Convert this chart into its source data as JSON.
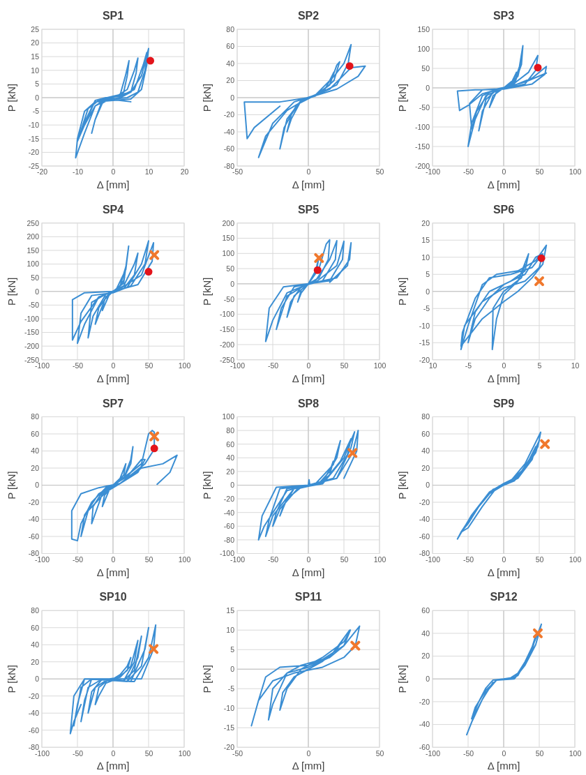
{
  "chart_data": [
    {
      "type": "line",
      "title": "SP1",
      "xlabel": "Δ [mm]",
      "ylabel": "P [kN]",
      "xlim": [
        -20,
        20
      ],
      "ylim": [
        -25,
        25
      ],
      "xticks": [
        -20,
        -10,
        0,
        10,
        20
      ],
      "yticks": [
        -25,
        -20,
        -15,
        -10,
        -5,
        0,
        5,
        10,
        15,
        20,
        25
      ],
      "grid": true,
      "series": [
        {
          "type": "line",
          "color": "#3b8ed3",
          "x": [
            0,
            2,
            3.5,
            4.5,
            4,
            3,
            1,
            -1,
            -3,
            -5,
            -6,
            -5,
            -3,
            -1,
            1,
            4,
            6,
            7,
            6.5,
            5,
            2,
            -2,
            -5,
            -8,
            -10,
            -8,
            -5,
            -2,
            2,
            6,
            8.5,
            9.5,
            9,
            7,
            4,
            0,
            -4,
            -7,
            -9,
            -10,
            -8,
            -5,
            0,
            5,
            8,
            10,
            9.5,
            8,
            5,
            0,
            -5,
            -8,
            -10,
            -10.5,
            -8,
            -5,
            -2,
            2,
            5
          ],
          "values": [
            0,
            1,
            8,
            13.5,
            8,
            2,
            0.5,
            -0.5,
            -2,
            -8,
            -13,
            -8,
            -1,
            0,
            0.5,
            3,
            10,
            14.5,
            9,
            2,
            0,
            -1,
            -3,
            -10,
            -16,
            -10,
            -1,
            0,
            0.5,
            3,
            12,
            16.5,
            10,
            2,
            0,
            -0.5,
            -1,
            -4,
            -12,
            -15,
            -9,
            -1,
            0.5,
            2,
            8,
            18,
            12,
            3,
            -0.5,
            -1,
            -1.5,
            -5,
            -15,
            -22,
            -13,
            -3,
            -0.5,
            -1,
            -1.5
          ]
        },
        {
          "type": "scatter",
          "marker": "circle",
          "color": "#e3141b",
          "x": [
            10.5
          ],
          "values": [
            13.5
          ]
        }
      ]
    },
    {
      "type": "line",
      "title": "SP2",
      "xlabel": "Δ [mm]",
      "ylabel": "P [kN]",
      "xlim": [
        -50,
        50
      ],
      "ylim": [
        -80,
        80
      ],
      "xticks": [
        -50,
        0,
        50
      ],
      "yticks": [
        -80,
        -60,
        -40,
        -20,
        0,
        20,
        40,
        60,
        80
      ],
      "grid": true,
      "series": [
        {
          "type": "line",
          "color": "#3b8ed3",
          "x": [
            0,
            10,
            15,
            18,
            15,
            5,
            -5,
            -12,
            -15,
            -12,
            -5,
            5,
            15,
            20,
            22,
            18,
            8,
            -5,
            -15,
            -20,
            -17,
            -8,
            5,
            18,
            25,
            30,
            28,
            20,
            5,
            -10,
            -25,
            -35,
            -30,
            -15,
            0,
            15,
            30,
            40,
            35,
            20,
            0,
            -20,
            -45,
            -43,
            -38,
            -20
          ],
          "values": [
            0,
            5,
            20,
            30,
            15,
            2,
            -3,
            -25,
            -40,
            -20,
            -3,
            3,
            15,
            38,
            42,
            20,
            5,
            -3,
            -25,
            -60,
            -35,
            -8,
            3,
            25,
            40,
            62,
            40,
            15,
            3,
            -5,
            -30,
            -70,
            -45,
            -15,
            0,
            10,
            35,
            37,
            25,
            10,
            0,
            -5,
            -5,
            -48,
            -35,
            -10
          ]
        },
        {
          "type": "scatter",
          "marker": "circle",
          "color": "#e3141b",
          "x": [
            29
          ],
          "values": [
            37
          ]
        }
      ]
    },
    {
      "type": "line",
      "title": "SP3",
      "xlabel": "Δ [mm]",
      "ylabel": "P [kN]",
      "xlim": [
        -100,
        100
      ],
      "ylim": [
        -200,
        150
      ],
      "xticks": [
        -100,
        -50,
        0,
        50,
        100
      ],
      "yticks": [
        -200,
        -150,
        -100,
        -50,
        0,
        50,
        100,
        150
      ],
      "grid": true,
      "series": [
        {
          "type": "line",
          "color": "#3b8ed3",
          "x": [
            0,
            10,
            18,
            12,
            0,
            -10,
            -20,
            -15,
            0,
            15,
            25,
            20,
            5,
            -10,
            -25,
            -35,
            -30,
            -15,
            0,
            20,
            27,
            25,
            15,
            0,
            -25,
            -40,
            -50,
            -45,
            -30,
            -10,
            10,
            35,
            48,
            45,
            30,
            0,
            -30,
            -48,
            -45,
            -38,
            -20,
            10,
            40,
            60,
            58,
            40,
            0,
            -40,
            -65,
            -62,
            -50,
            -30,
            0,
            30,
            60
          ],
          "values": [
            0,
            10,
            40,
            15,
            0,
            -10,
            -50,
            -20,
            0,
            15,
            70,
            30,
            2,
            -5,
            -30,
            -110,
            -60,
            -10,
            0,
            30,
            108,
            60,
            10,
            0,
            -20,
            -80,
            -150,
            -90,
            -20,
            -3,
            5,
            40,
            83,
            45,
            10,
            -2,
            -5,
            -40,
            -105,
            -60,
            -10,
            3,
            25,
            55,
            35,
            10,
            -3,
            -5,
            -8,
            -58,
            -45,
            -15,
            0,
            15,
            38
          ]
        },
        {
          "type": "scatter",
          "marker": "circle",
          "color": "#e3141b",
          "x": [
            48
          ],
          "values": [
            52
          ]
        }
      ]
    },
    {
      "type": "line",
      "title": "SP4",
      "xlabel": "Δ [mm]",
      "ylabel": "P [kN]",
      "xlim": [
        -100,
        100
      ],
      "ylim": [
        -250,
        250
      ],
      "xticks": [
        -100,
        -50,
        0,
        50,
        100
      ],
      "yticks": [
        -250,
        -200,
        -150,
        -100,
        -50,
        0,
        50,
        100,
        150,
        200,
        250
      ],
      "grid": true,
      "series": [
        {
          "type": "line",
          "color": "#3b8ed3",
          "x": [
            0,
            10,
            18,
            15,
            5,
            -5,
            -15,
            -12,
            0,
            15,
            22,
            18,
            5,
            -10,
            -25,
            -20,
            -5,
            15,
            30,
            35,
            30,
            15,
            -10,
            -30,
            -35,
            -28,
            -10,
            20,
            40,
            50,
            45,
            25,
            0,
            -30,
            -45,
            -50,
            -40,
            -20,
            10,
            40,
            57,
            55,
            35,
            0,
            -40,
            -57,
            -57,
            -45,
            -20
          ],
          "values": [
            0,
            20,
            90,
            40,
            5,
            -10,
            -70,
            -30,
            0,
            30,
            166,
            80,
            10,
            -20,
            -120,
            -60,
            -5,
            20,
            100,
            140,
            60,
            10,
            -10,
            -40,
            -170,
            -90,
            -10,
            15,
            100,
            185,
            100,
            20,
            -5,
            -15,
            -80,
            -190,
            -120,
            -20,
            10,
            60,
            178,
            110,
            25,
            0,
            -5,
            -30,
            -178,
            -110,
            -20
          ]
        },
        {
          "type": "scatter",
          "marker": "circle",
          "color": "#e3141b",
          "x": [
            50
          ],
          "values": [
            72
          ]
        },
        {
          "type": "scatter",
          "marker": "cross",
          "color": "#f0782d",
          "x": [
            58
          ],
          "values": [
            133
          ]
        }
      ]
    },
    {
      "type": "line",
      "title": "SP5",
      "xlabel": "Δ [mm]",
      "ylabel": "P [kN]",
      "xlim": [
        -100,
        100
      ],
      "ylim": [
        -250,
        200
      ],
      "xticks": [
        -100,
        -50,
        0,
        50,
        100
      ],
      "yticks": [
        -250,
        -200,
        -150,
        -100,
        -50,
        0,
        50,
        100,
        150,
        200
      ],
      "grid": true,
      "series": [
        {
          "type": "line",
          "color": "#3b8ed3",
          "x": [
            0,
            10,
            15,
            12,
            0,
            -10,
            -15,
            -10,
            0,
            15,
            25,
            30,
            28,
            15,
            0,
            -20,
            -30,
            -25,
            -10,
            10,
            30,
            40,
            38,
            20,
            -5,
            -30,
            -45,
            -38,
            -20,
            10,
            40,
            50,
            48,
            30,
            0,
            -35,
            -55,
            -60,
            -50,
            -30,
            0,
            40,
            58,
            60,
            55,
            30
          ],
          "values": [
            0,
            40,
            90,
            50,
            0,
            -30,
            -60,
            -20,
            0,
            50,
            130,
            145,
            80,
            20,
            0,
            -40,
            -110,
            -60,
            -10,
            10,
            80,
            142,
            80,
            10,
            -5,
            -40,
            -150,
            -80,
            -10,
            5,
            60,
            140,
            80,
            10,
            0,
            -10,
            -80,
            -190,
            -120,
            -30,
            0,
            20,
            80,
            135,
            60,
            5
          ]
        },
        {
          "type": "scatter",
          "marker": "circle",
          "color": "#e3141b",
          "x": [
            13
          ],
          "values": [
            45
          ]
        },
        {
          "type": "scatter",
          "marker": "cross",
          "color": "#f0782d",
          "x": [
            15
          ],
          "values": [
            85
          ]
        }
      ]
    },
    {
      "type": "line",
      "title": "SP6",
      "xlabel": "Δ [mm]",
      "ylabel": "P [kN]",
      "xlim": [
        -10,
        10
      ],
      "ylim": [
        -20,
        20
      ],
      "xticks": [
        {
          "value": -10,
          "label": "10"
        },
        -5,
        0,
        5,
        10
      ],
      "yticks": [
        -20,
        -15,
        -10,
        -5,
        0,
        5,
        10,
        15,
        20
      ],
      "grid": true,
      "series": [
        {
          "type": "line",
          "color": "#3b8ed3",
          "x": [
            0,
            2,
            3,
            2.5,
            0,
            -1.5,
            -1.6,
            -1,
            0,
            2,
            3.5,
            3,
            1,
            -2,
            -4,
            -5,
            -4,
            -2,
            0,
            3,
            4.5,
            5.5,
            5,
            3,
            0,
            -3,
            -5.5,
            -6,
            -5,
            -3,
            -1,
            2,
            4.5,
            6,
            5.5,
            4,
            2,
            0,
            -3,
            -6,
            -5.8,
            -4,
            -2,
            1,
            4,
            5.5
          ],
          "values": [
            0,
            3,
            8,
            4,
            0,
            -5,
            -17,
            -8,
            -1,
            3,
            11,
            6,
            3,
            0,
            -6,
            -15,
            -8,
            -2,
            2,
            5,
            10,
            11,
            7,
            3,
            1,
            -3,
            -10,
            -17,
            -10,
            2,
            5,
            6,
            9,
            13.5,
            8,
            4,
            0,
            -3,
            -8,
            -16,
            -12,
            -2,
            4,
            5,
            7,
            11
          ]
        },
        {
          "type": "scatter",
          "marker": "circle",
          "color": "#e3141b",
          "x": [
            5.3
          ],
          "values": [
            9.7
          ]
        },
        {
          "type": "scatter",
          "marker": "cross",
          "color": "#f0782d",
          "x": [
            5
          ],
          "values": [
            3
          ]
        }
      ]
    },
    {
      "type": "line",
      "title": "SP7",
      "xlabel": "Δ [mm]",
      "ylabel": "P [kN]",
      "xlim": [
        -100,
        100
      ],
      "ylim": [
        -80,
        80
      ],
      "xticks": [
        -100,
        -50,
        0,
        50,
        100
      ],
      "yticks": [
        -80,
        -60,
        -40,
        -20,
        0,
        20,
        40,
        60,
        80
      ],
      "grid": true,
      "series": [
        {
          "type": "line",
          "color": "#3b8ed3",
          "x": [
            0,
            10,
            18,
            15,
            5,
            -5,
            -15,
            -12,
            0,
            15,
            25,
            28,
            25,
            15,
            0,
            -15,
            -30,
            -28,
            -15,
            0,
            20,
            40,
            45,
            35,
            10,
            -10,
            -35,
            -45,
            -40,
            -20,
            0,
            25,
            40,
            50,
            55,
            58,
            58,
            45,
            30,
            10,
            -20,
            -45,
            -58,
            -58,
            -50,
            -45,
            -30,
            -10,
            10,
            40,
            70,
            90,
            80,
            62
          ],
          "values": [
            0,
            8,
            25,
            12,
            2,
            -5,
            -25,
            -12,
            0,
            8,
            30,
            45,
            25,
            8,
            0,
            -10,
            -45,
            -25,
            -8,
            0,
            10,
            30,
            30,
            15,
            2,
            -8,
            -30,
            -60,
            -35,
            -10,
            0,
            15,
            25,
            60,
            64,
            62,
            42,
            25,
            15,
            2,
            -3,
            -10,
            -30,
            -63,
            -65,
            -45,
            -20,
            -3,
            2,
            20,
            25,
            35,
            15,
            1
          ]
        },
        {
          "type": "scatter",
          "marker": "circle",
          "color": "#e3141b",
          "x": [
            58
          ],
          "values": [
            43
          ]
        },
        {
          "type": "scatter",
          "marker": "cross",
          "color": "#f0782d",
          "x": [
            58
          ],
          "values": [
            57
          ]
        }
      ]
    },
    {
      "type": "line",
      "title": "SP8",
      "xlabel": "Δ [mm]",
      "ylabel": "P [kN]",
      "xlim": [
        -100,
        100
      ],
      "ylim": [
        -100,
        100
      ],
      "xticks": [
        -100,
        -50,
        0,
        50,
        100
      ],
      "yticks": [
        -100,
        -80,
        -60,
        -40,
        -20,
        0,
        20,
        40,
        60,
        80,
        100
      ],
      "grid": true,
      "series": [
        {
          "type": "line",
          "color": "#3b8ed3",
          "x": [
            0,
            1,
            2,
            15,
            30,
            35,
            30,
            15,
            0,
            -20,
            -35,
            -40,
            -30,
            -10,
            10,
            35,
            45,
            40,
            20,
            0,
            -30,
            -45,
            -50,
            -40,
            -15,
            20,
            45,
            60,
            55,
            35,
            0,
            -40,
            -55,
            -60,
            -50,
            -20,
            20,
            50,
            65,
            60,
            40,
            0,
            -45,
            -65,
            -70,
            -62,
            -30,
            0,
            40,
            62,
            70,
            68,
            50
          ],
          "values": [
            0,
            8,
            0,
            3,
            20,
            35,
            15,
            3,
            0,
            -5,
            -30,
            -45,
            -20,
            -3,
            2,
            30,
            65,
            40,
            5,
            0,
            -5,
            -40,
            -60,
            -35,
            -5,
            3,
            35,
            68,
            45,
            10,
            0,
            -5,
            -50,
            -75,
            -45,
            -5,
            2,
            40,
            78,
            55,
            10,
            0,
            -3,
            -45,
            -80,
            -60,
            -8,
            0,
            10,
            47,
            80,
            50,
            10
          ]
        },
        {
          "type": "scatter",
          "marker": "cross",
          "color": "#f0782d",
          "x": [
            62
          ],
          "values": [
            47
          ]
        }
      ]
    },
    {
      "type": "line",
      "title": "SP9",
      "xlabel": "Δ [mm]",
      "ylabel": "P [kN]",
      "xlim": [
        -100,
        100
      ],
      "ylim": [
        -80,
        80
      ],
      "xticks": [
        -100,
        -50,
        0,
        50,
        100
      ],
      "yticks": [
        -80,
        -60,
        -40,
        -20,
        0,
        20,
        40,
        60,
        80
      ],
      "grid": true,
      "series": [
        {
          "type": "line",
          "color": "#3b8ed3",
          "x": [
            0,
            15,
            30,
            45,
            40,
            20,
            0,
            -20,
            -40,
            -55,
            -45,
            -20,
            0,
            20,
            40,
            50,
            45,
            25,
            5,
            -15,
            -35,
            -50,
            -60,
            -50,
            -30,
            -10,
            10,
            30,
            52,
            48,
            30,
            5,
            -20,
            -45,
            -65,
            -60,
            -40,
            -15
          ],
          "values": [
            0,
            5,
            20,
            45,
            30,
            8,
            0,
            -10,
            -30,
            -50,
            -35,
            -8,
            2,
            10,
            35,
            52,
            38,
            15,
            2,
            -5,
            -25,
            -45,
            -55,
            -50,
            -25,
            -3,
            5,
            25,
            62,
            45,
            20,
            2,
            -8,
            -35,
            -63,
            -55,
            -30,
            -5
          ]
        },
        {
          "type": "scatter",
          "marker": "cross",
          "color": "#f0782d",
          "x": [
            58
          ],
          "values": [
            48
          ]
        }
      ]
    },
    {
      "type": "line",
      "title": "SP10",
      "xlabel": "Δ [mm]",
      "ylabel": "P [kN]",
      "xlim": [
        -100,
        100
      ],
      "ylim": [
        -80,
        80
      ],
      "xticks": [
        -100,
        -50,
        0,
        50,
        100
      ],
      "yticks": [
        -80,
        -60,
        -40,
        -20,
        0,
        20,
        40,
        60,
        80
      ],
      "grid": true,
      "series": [
        {
          "type": "line",
          "color": "#3b8ed3",
          "x": [
            0,
            10,
            20,
            25,
            20,
            5,
            -10,
            -20,
            -25,
            -20,
            -5,
            10,
            25,
            35,
            30,
            15,
            -10,
            -25,
            -35,
            -30,
            -15,
            15,
            30,
            40,
            35,
            20,
            -15,
            -35,
            -45,
            -40,
            -30,
            20,
            40,
            50,
            45,
            25,
            -30,
            -45,
            -55,
            -50,
            -40,
            30,
            50,
            60,
            57,
            40,
            -40,
            -55,
            -60,
            -55,
            -45
          ],
          "values": [
            0,
            5,
            15,
            25,
            10,
            0,
            -5,
            -20,
            -30,
            -10,
            0,
            2,
            15,
            45,
            20,
            -2,
            -2,
            -10,
            -40,
            -15,
            0,
            -2,
            10,
            50,
            25,
            -3,
            0,
            -10,
            -50,
            -25,
            0,
            -3,
            15,
            60,
            35,
            -3,
            0,
            -10,
            -55,
            -30,
            0,
            -3,
            25,
            63,
            35,
            0,
            0,
            -20,
            -64,
            -50,
            -30
          ]
        },
        {
          "type": "scatter",
          "marker": "cross",
          "color": "#f0782d",
          "x": [
            57
          ],
          "values": [
            35
          ]
        }
      ]
    },
    {
      "type": "line",
      "title": "SP11",
      "xlabel": "Δ [mm]",
      "ylabel": "P [kN]",
      "xlim": [
        -50,
        50
      ],
      "ylim": [
        -20,
        15
      ],
      "xticks": [
        -50,
        0,
        50
      ],
      "yticks": [
        -20,
        -15,
        -10,
        -5,
        0,
        5,
        10,
        15
      ],
      "grid": true,
      "series": [
        {
          "type": "line",
          "color": "#3b8ed3",
          "x": [
            0,
            10,
            20,
            25,
            20,
            10,
            0,
            -10,
            -18,
            -20,
            -15,
            -5,
            10,
            25,
            29.5,
            25,
            15,
            0,
            -15,
            -25,
            -28,
            -25,
            -15,
            -5,
            10,
            25,
            36,
            33,
            25,
            10,
            -10,
            -25,
            -35,
            -40,
            -35,
            -30,
            -20,
            0,
            15,
            29
          ],
          "values": [
            0,
            2,
            5,
            8,
            5,
            2,
            0,
            -2,
            -6,
            -10.5,
            -5,
            0,
            3,
            7,
            10,
            6,
            3,
            0.5,
            -1,
            -5,
            -13,
            -9,
            -1,
            1,
            2.5,
            6,
            11,
            6,
            3,
            0.5,
            -1,
            -3,
            -8,
            -14.5,
            -8,
            -2,
            0.5,
            1,
            3,
            10
          ]
        },
        {
          "type": "scatter",
          "marker": "cross",
          "color": "#f0782d",
          "x": [
            33
          ],
          "values": [
            6
          ]
        }
      ]
    },
    {
      "type": "line",
      "title": "SP12",
      "xlabel": "Δ [mm]",
      "ylabel": "P [kN]",
      "xlim": [
        -100,
        100
      ],
      "ylim": [
        -60,
        60
      ],
      "xticks": [
        -100,
        -50,
        0,
        50,
        100
      ],
      "yticks": [
        -60,
        -40,
        -20,
        0,
        20,
        40,
        60
      ],
      "grid": true,
      "series": [
        {
          "type": "line",
          "color": "#3b8ed3",
          "x": [
            0,
            10,
            20,
            30,
            40,
            45,
            40,
            25,
            15,
            0,
            -15,
            -25,
            -35,
            -45,
            -40,
            -25,
            -10,
            10,
            20,
            35,
            48,
            53,
            45,
            30,
            15,
            -10,
            -25,
            -40,
            -52,
            -45,
            -30,
            -15
          ],
          "values": [
            0,
            1,
            5,
            15,
            28,
            38,
            25,
            8,
            1,
            0,
            -1,
            -8,
            -20,
            -35,
            -25,
            -10,
            -1,
            0,
            3,
            20,
            40,
            48,
            30,
            12,
            0,
            -1,
            -12,
            -30,
            -49,
            -38,
            -18,
            -3
          ]
        },
        {
          "type": "scatter",
          "marker": "cross",
          "color": "#f0782d",
          "x": [
            48
          ],
          "values": [
            40
          ]
        }
      ]
    }
  ]
}
